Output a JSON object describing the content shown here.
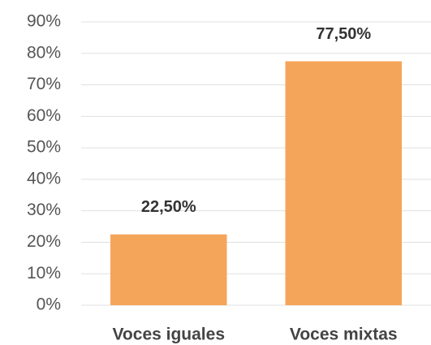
{
  "chart_data": {
    "type": "bar",
    "categories": [
      "Voces iguales",
      "Voces mixtas"
    ],
    "values": [
      22.5,
      77.5
    ],
    "value_labels": [
      "22,50%",
      "77,50%"
    ],
    "color": "#f5a55a",
    "ylim": [
      0,
      90
    ],
    "yticks": [
      {
        "value": 0,
        "label": "0%"
      },
      {
        "value": 10,
        "label": "10%"
      },
      {
        "value": 20,
        "label": "20%"
      },
      {
        "value": 30,
        "label": "30%"
      },
      {
        "value": 40,
        "label": "40%"
      },
      {
        "value": 50,
        "label": "50%"
      },
      {
        "value": 60,
        "label": "60%"
      },
      {
        "value": 70,
        "label": "70%"
      },
      {
        "value": 80,
        "label": "80%"
      },
      {
        "value": 90,
        "label": "90%"
      }
    ],
    "grid": true
  }
}
